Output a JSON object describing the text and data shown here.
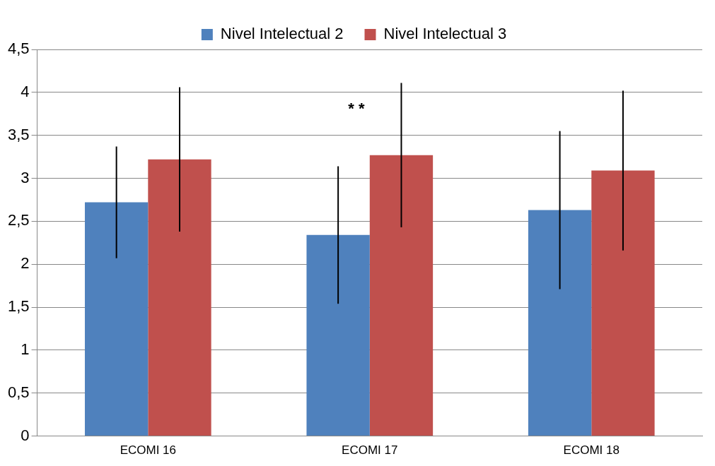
{
  "chart_data": {
    "type": "bar",
    "categories": [
      "ECOMI 16",
      "ECOMI 17",
      "ECOMI 18"
    ],
    "series": [
      {
        "name": "Nivel Intelectual 2",
        "color": "#4f81bd",
        "values": [
          2.72,
          2.34,
          2.63
        ],
        "errors": [
          0.65,
          0.8,
          0.92
        ]
      },
      {
        "name": "Nivel Intelectual 3",
        "color": "#c0504d",
        "values": [
          3.22,
          3.27,
          3.09
        ],
        "errors": [
          0.84,
          0.84,
          0.93
        ]
      }
    ],
    "ylim": [
      0,
      4.5
    ],
    "yticks": [
      {
        "value": 0,
        "label": "0"
      },
      {
        "value": 0.5,
        "label": "0,5"
      },
      {
        "value": 1,
        "label": "1"
      },
      {
        "value": 1.5,
        "label": "1,5"
      },
      {
        "value": 2,
        "label": "2"
      },
      {
        "value": 2.5,
        "label": "2,5"
      },
      {
        "value": 3,
        "label": "3"
      },
      {
        "value": 3.5,
        "label": "3,5"
      },
      {
        "value": 4,
        "label": "4"
      },
      {
        "value": 4.5,
        "label": "4,5"
      }
    ],
    "grid": "y",
    "legend": "top",
    "annotations": [
      "* *"
    ]
  }
}
